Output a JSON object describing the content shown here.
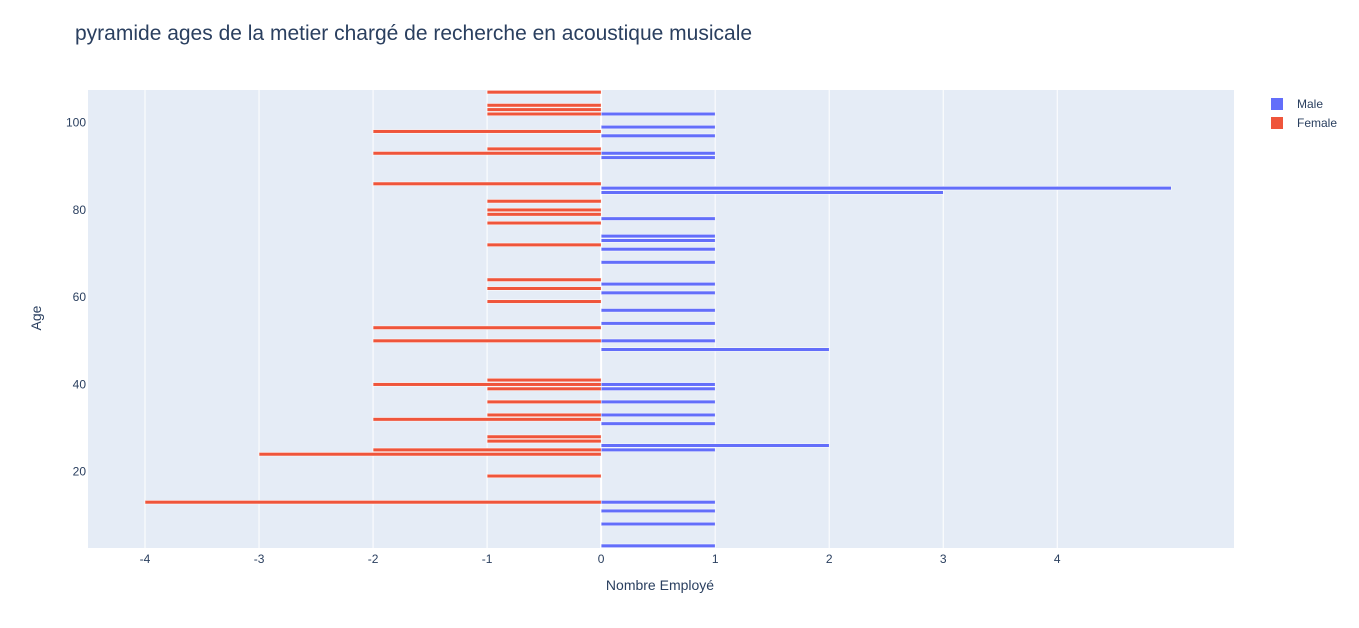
{
  "chart_data": {
    "type": "bar",
    "orientation": "horizontal",
    "title": "pyramide ages de la metier  chargé de recherche en acoustique musicale",
    "xlabel": "Nombre Employé",
    "ylabel": "Age",
    "xlim": [
      -4.5,
      5.55
    ],
    "ylim": [
      2.5,
      107.5
    ],
    "x_ticks": [
      -4,
      -3,
      -2,
      -1,
      0,
      1,
      2,
      3,
      4
    ],
    "x_tick_labels": [
      "-4",
      "-3",
      "-2",
      "-1",
      "0",
      "1",
      "2",
      "3",
      "4"
    ],
    "y_ticks": [
      20,
      40,
      60,
      80,
      100
    ],
    "y_tick_labels": [
      "20",
      "40",
      "60",
      "80",
      "100"
    ],
    "grid": true,
    "legend_position": "top-right",
    "background_color": "#e5ecf6",
    "series": [
      {
        "name": "Male",
        "color": "#636efa",
        "points": [
          {
            "age": 3,
            "value": 1
          },
          {
            "age": 8,
            "value": 1
          },
          {
            "age": 11,
            "value": 1
          },
          {
            "age": 13,
            "value": 1
          },
          {
            "age": 25,
            "value": 1
          },
          {
            "age": 26,
            "value": 2
          },
          {
            "age": 31,
            "value": 1
          },
          {
            "age": 33,
            "value": 1
          },
          {
            "age": 36,
            "value": 1
          },
          {
            "age": 39,
            "value": 1
          },
          {
            "age": 40,
            "value": 1
          },
          {
            "age": 48,
            "value": 2
          },
          {
            "age": 50,
            "value": 1
          },
          {
            "age": 54,
            "value": 1
          },
          {
            "age": 57,
            "value": 1
          },
          {
            "age": 61,
            "value": 1
          },
          {
            "age": 63,
            "value": 1
          },
          {
            "age": 68,
            "value": 1
          },
          {
            "age": 71,
            "value": 1
          },
          {
            "age": 73,
            "value": 1
          },
          {
            "age": 74,
            "value": 1
          },
          {
            "age": 78,
            "value": 1
          },
          {
            "age": 84,
            "value": 3
          },
          {
            "age": 85,
            "value": 5
          },
          {
            "age": 92,
            "value": 1
          },
          {
            "age": 93,
            "value": 1
          },
          {
            "age": 97,
            "value": 1
          },
          {
            "age": 99,
            "value": 1
          },
          {
            "age": 102,
            "value": 1
          }
        ]
      },
      {
        "name": "Female",
        "color": "#ef553b",
        "points": [
          {
            "age": 13,
            "value": -4
          },
          {
            "age": 19,
            "value": -1
          },
          {
            "age": 24,
            "value": -3
          },
          {
            "age": 25,
            "value": -2
          },
          {
            "age": 27,
            "value": -1
          },
          {
            "age": 28,
            "value": -1
          },
          {
            "age": 32,
            "value": -2
          },
          {
            "age": 33,
            "value": -1
          },
          {
            "age": 36,
            "value": -1
          },
          {
            "age": 39,
            "value": -1
          },
          {
            "age": 40,
            "value": -2
          },
          {
            "age": 41,
            "value": -1
          },
          {
            "age": 50,
            "value": -2
          },
          {
            "age": 53,
            "value": -2
          },
          {
            "age": 59,
            "value": -1
          },
          {
            "age": 62,
            "value": -1
          },
          {
            "age": 64,
            "value": -1
          },
          {
            "age": 72,
            "value": -1
          },
          {
            "age": 77,
            "value": -1
          },
          {
            "age": 79,
            "value": -1
          },
          {
            "age": 80,
            "value": -1
          },
          {
            "age": 82,
            "value": -1
          },
          {
            "age": 86,
            "value": -2
          },
          {
            "age": 93,
            "value": -2
          },
          {
            "age": 94,
            "value": -1
          },
          {
            "age": 98,
            "value": -2
          },
          {
            "age": 102,
            "value": -1
          },
          {
            "age": 103,
            "value": -1
          },
          {
            "age": 104,
            "value": -1
          },
          {
            "age": 107,
            "value": -1
          }
        ]
      }
    ]
  }
}
